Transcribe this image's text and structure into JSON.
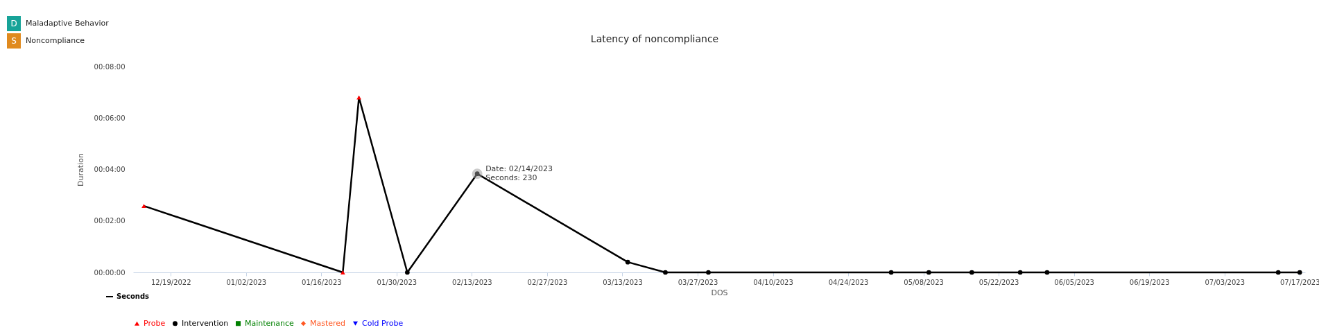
{
  "chart_data": {
    "type": "line",
    "title": "Latency of noncompliance",
    "xlabel": "DOS",
    "ylabel": "Duration",
    "x": [
      "2022-12-14",
      "2023-01-20",
      "2023-01-23",
      "2023-02-01",
      "2023-02-14",
      "2023-03-14",
      "2023-03-21",
      "2023-03-29",
      "2023-05-02",
      "2023-05-09",
      "2023-05-17",
      "2023-05-26",
      "2023-05-31",
      "2023-07-13",
      "2023-07-17"
    ],
    "series": [
      {
        "name": "Seconds",
        "type": "line",
        "color": "#000000",
        "marker": "none",
        "line_style": "solid",
        "values": [
          155,
          0,
          408,
          0,
          230,
          24,
          0,
          0,
          0,
          0,
          0,
          0,
          0,
          0,
          0
        ]
      },
      {
        "name": "Probe",
        "type": "scatter",
        "color": "#ff0000",
        "marker": "triangle",
        "x": [
          "2022-12-14",
          "2023-01-20",
          "2023-01-23"
        ],
        "values": [
          155,
          0,
          408
        ]
      },
      {
        "name": "Intervention",
        "type": "scatter",
        "color": "#000000",
        "marker": "circle",
        "x": [
          "2023-02-01",
          "2023-02-14",
          "2023-03-14",
          "2023-03-21",
          "2023-03-29",
          "2023-05-02",
          "2023-05-09",
          "2023-05-17",
          "2023-05-26",
          "2023-05-31",
          "2023-07-13",
          "2023-07-17"
        ],
        "values": [
          0,
          230,
          24,
          0,
          0,
          0,
          0,
          0,
          0,
          0,
          0,
          0
        ]
      },
      {
        "name": "Maintenance",
        "type": "scatter",
        "color": "#008000",
        "marker": "square",
        "values": [
          null,
          null,
          null,
          null,
          null,
          null,
          null,
          null,
          null,
          null,
          null,
          null,
          null,
          null,
          null
        ]
      },
      {
        "name": "Mastered",
        "type": "scatter",
        "color": "#ff5722",
        "marker": "diamond",
        "values": [
          null,
          null,
          null,
          null,
          null,
          null,
          null,
          null,
          null,
          null,
          null,
          null,
          null,
          null,
          null
        ]
      },
      {
        "name": "Cold Probe",
        "type": "scatter",
        "color": "#0000ff",
        "marker": "triangle-down",
        "values": [
          null,
          null,
          null,
          null,
          null,
          null,
          null,
          null,
          null,
          null,
          null,
          null,
          null,
          null,
          null
        ]
      }
    ],
    "xlim": [
      "2022-12-12",
      "2023-07-18"
    ],
    "xticks": [
      {
        "value": "2022-12-19",
        "label": "12/19/2022"
      },
      {
        "value": "2023-01-02",
        "label": "01/02/2023"
      },
      {
        "value": "2023-01-16",
        "label": "01/16/2023"
      },
      {
        "value": "2023-01-30",
        "label": "01/30/2023"
      },
      {
        "value": "2023-02-13",
        "label": "02/13/2023"
      },
      {
        "value": "2023-02-27",
        "label": "02/27/2023"
      },
      {
        "value": "2023-03-13",
        "label": "03/13/2023"
      },
      {
        "value": "2023-03-27",
        "label": "03/27/2023"
      },
      {
        "value": "2023-04-10",
        "label": "04/10/2023"
      },
      {
        "value": "2023-04-24",
        "label": "04/24/2023"
      },
      {
        "value": "2023-05-08",
        "label": "05/08/2023"
      },
      {
        "value": "2023-05-22",
        "label": "05/22/2023"
      },
      {
        "value": "2023-06-05",
        "label": "06/05/2023"
      },
      {
        "value": "2023-06-19",
        "label": "06/19/2023"
      },
      {
        "value": "2023-07-03",
        "label": "07/03/2023"
      },
      {
        "value": "2023-07-17",
        "label": "07/17/2023"
      }
    ],
    "ylim": [
      0,
      480
    ],
    "yticks": [
      {
        "value": 0,
        "label": "00:00:00"
      },
      {
        "value": 120,
        "label": "00:02:00"
      },
      {
        "value": 240,
        "label": "00:04:00"
      },
      {
        "value": 360,
        "label": "00:06:00"
      },
      {
        "value": 480,
        "label": "00:08:00"
      }
    ],
    "grid": false,
    "legend": "bottom",
    "annotations": [
      "D",
      "Maladaptive Behavior",
      "S",
      "Noncompliance",
      {
        "text": "Date: 02/14/2023\nSeconds: 230",
        "x": "2023-02-14",
        "y": 230
      }
    ]
  }
}
